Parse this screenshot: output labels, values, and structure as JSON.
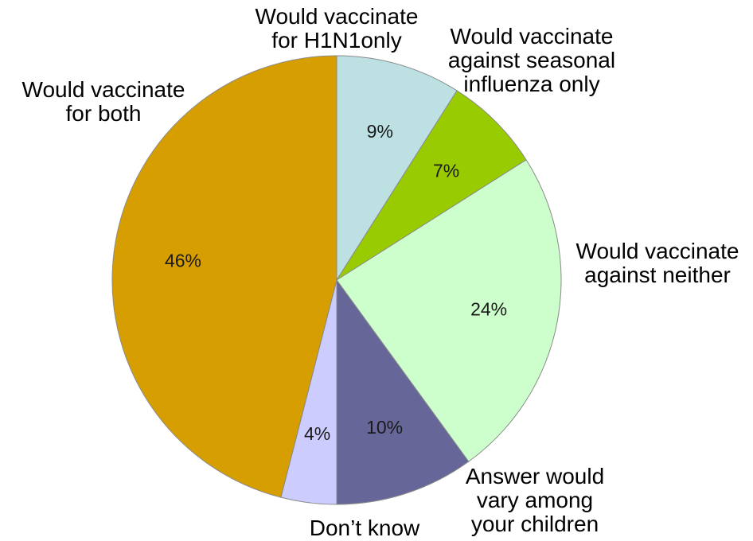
{
  "chart_data": {
    "type": "pie",
    "start": "12 o'clock",
    "direction": "clockwise",
    "slices": [
      {
        "label_lines": [
          "Would vaccinate",
          "for H1N1only"
        ],
        "value": 9,
        "value_label": "9%",
        "color": "#bde0e3"
      },
      {
        "label_lines": [
          "Would vaccinate",
          "against seasonal",
          "influenza only"
        ],
        "value": 7,
        "value_label": "7%",
        "color": "#99cc00"
      },
      {
        "label_lines": [
          "Would vaccinate",
          "against neither"
        ],
        "value": 24,
        "value_label": "24%",
        "color": "#ccffcc"
      },
      {
        "label_lines": [
          "Answer would",
          "vary among",
          "your children"
        ],
        "value": 10,
        "value_label": "10%",
        "color": "#666699"
      },
      {
        "label_lines": [
          "Don’t know"
        ],
        "value": 4,
        "value_label": "4%",
        "color": "#ccccff"
      },
      {
        "label_lines": [
          "Would vaccinate",
          "for both"
        ],
        "value": 46,
        "value_label": "46%",
        "color": "#d69e00"
      }
    ]
  }
}
